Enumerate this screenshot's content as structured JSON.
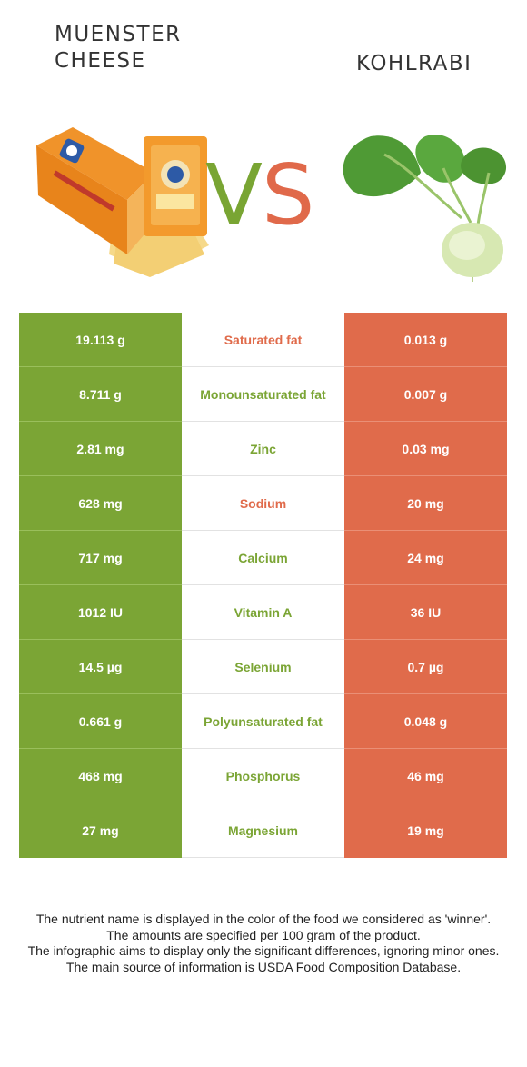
{
  "header": {
    "left_title": "MUENSTER CHEESE",
    "right_title": "KOHLRABI",
    "vs_v": "V",
    "vs_s": "S"
  },
  "colors": {
    "left_food": "#7ba535",
    "right_food": "#e06b4b"
  },
  "rows": [
    {
      "left": "19.113 g",
      "nutrient": "Saturated fat",
      "right": "0.013 g",
      "winner": "right"
    },
    {
      "left": "8.711 g",
      "nutrient": "Monounsaturated fat",
      "right": "0.007 g",
      "winner": "left"
    },
    {
      "left": "2.81 mg",
      "nutrient": "Zinc",
      "right": "0.03 mg",
      "winner": "left"
    },
    {
      "left": "628 mg",
      "nutrient": "Sodium",
      "right": "20 mg",
      "winner": "right"
    },
    {
      "left": "717 mg",
      "nutrient": "Calcium",
      "right": "24 mg",
      "winner": "left"
    },
    {
      "left": "1012 IU",
      "nutrient": "Vitamin A",
      "right": "36 IU",
      "winner": "left"
    },
    {
      "left": "14.5 µg",
      "nutrient": "Selenium",
      "right": "0.7 µg",
      "winner": "left"
    },
    {
      "left": "0.661 g",
      "nutrient": "Polyunsaturated fat",
      "right": "0.048 g",
      "winner": "left"
    },
    {
      "left": "468 mg",
      "nutrient": "Phosphorus",
      "right": "46 mg",
      "winner": "left"
    },
    {
      "left": "27 mg",
      "nutrient": "Magnesium",
      "right": "19 mg",
      "winner": "left"
    }
  ],
  "footer": {
    "line1": "The nutrient name is displayed in the color of the food we considered as 'winner'.",
    "line2": "The amounts are specified per 100 gram of the product.",
    "line3": "The infographic aims to display only the significant differences, ignoring minor ones.",
    "line4": "The main source of information is USDA Food Composition Database."
  }
}
